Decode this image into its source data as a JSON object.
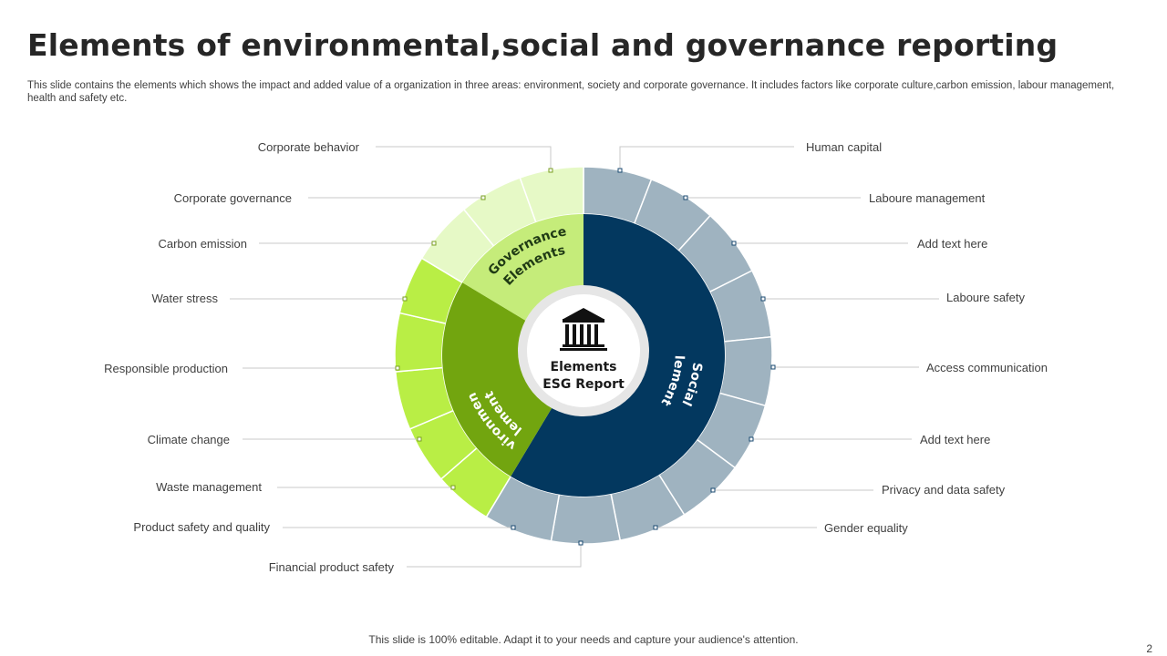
{
  "slide": {
    "title": "Elements of environmental,social and governance reporting",
    "description": "This slide contains the elements which shows the impact and added value of a organization in three areas: environment, society and corporate governance. It includes factors like corporate culture,carbon emission, labour management, health and safety etc.",
    "footer": "This slide is 100% editable. Adapt it to your needs and capture your audience's attention.",
    "page_number": "2"
  },
  "diagram": {
    "center": {
      "line1": "Elements",
      "line2": "ESG Report",
      "icon": "bank-building-icon"
    },
    "segments": {
      "governance": {
        "line1": "Governance",
        "line2": "Elements",
        "color": "#c5ec7a",
        "outer_color": "#e6f9c6"
      },
      "environmental": {
        "line1": "Environmental",
        "line2": "Elements",
        "color": "#72a50f",
        "outer_color": "#b9ee45"
      },
      "social": {
        "line1": "Social",
        "line2": "Elements",
        "color": "#03385f",
        "outer_color": "#9fb3c0"
      }
    },
    "left_labels": [
      "Corporate  behavior",
      "Corporate  governance",
      "Carbon  emission",
      "Water stress",
      "Responsible  production",
      "Climate  change",
      "Waste management",
      "Product safety and   quality",
      "Financial product safety"
    ],
    "right_labels": [
      "Human capital",
      "Laboure  management",
      "Add text here",
      "Laboure  safety",
      "Access communication",
      "Add text here",
      "Privacy and data safety",
      "Gender  equality"
    ]
  }
}
